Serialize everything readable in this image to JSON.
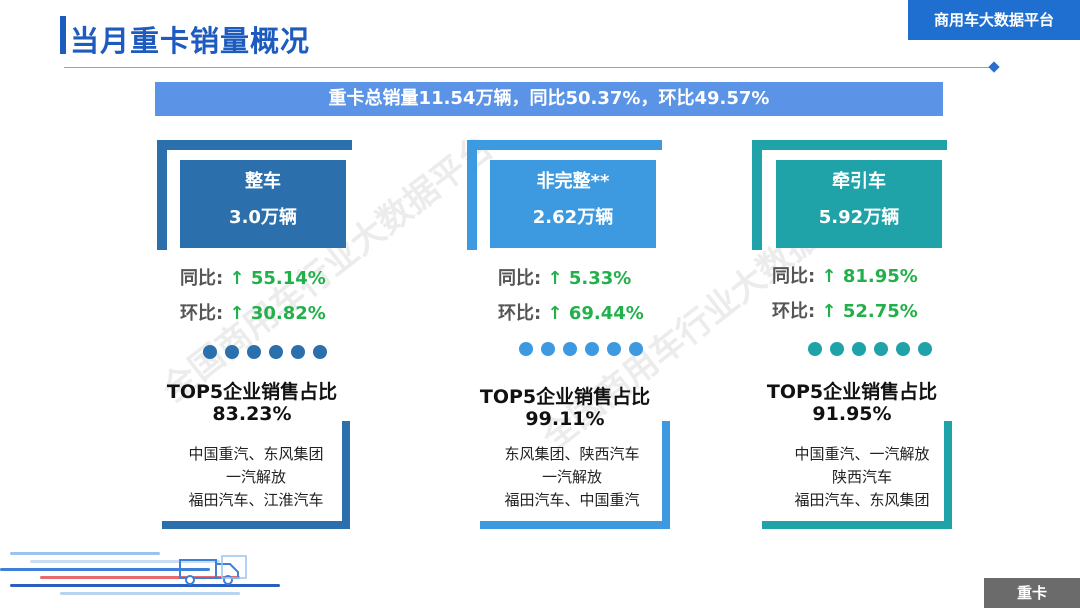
{
  "title": "当月重卡销量概况",
  "brand": "商用车大数据平台",
  "summary": "重卡总销量11.54万辆，同比50.37%，环比49.57%",
  "watermark": "全国商用车行业大数据平台",
  "footer_label": "重卡",
  "colors": {
    "left": "#2b6fad",
    "mid": "#3d9ae0",
    "right": "#1fa3a8",
    "growth": "#22b04b"
  },
  "cards": [
    {
      "name": "整车",
      "value": "3.0万辆",
      "yoy_label": "同比:",
      "yoy": "↑ 55.14%",
      "mom_label": "环比:",
      "mom": "↑ 30.82%",
      "top5_title": "TOP5企业销售占比",
      "top5_pct": "83.23%",
      "companies": [
        "中国重汽、东风集团",
        "一汽解放",
        "福田汽车、江淮汽车"
      ]
    },
    {
      "name": "非完整**",
      "value": "2.62万辆",
      "yoy_label": "同比:",
      "yoy": "↑ 5.33%",
      "mom_label": "环比:",
      "mom": "↑ 69.44%",
      "top5_title": "TOP5企业销售占比",
      "top5_pct": "99.11%",
      "companies": [
        "东风集团、陕西汽车",
        "一汽解放",
        "福田汽车、中国重汽"
      ]
    },
    {
      "name": "牵引车",
      "value": "5.92万辆",
      "yoy_label": "同比:",
      "yoy": "↑ 81.95%",
      "mom_label": "环比:",
      "mom": "↑ 52.75%",
      "top5_title": "TOP5企业销售占比",
      "top5_pct": "91.95%",
      "companies": [
        "中国重汽、一汽解放",
        "陕西汽车",
        "福田汽车、东风集团"
      ]
    }
  ]
}
